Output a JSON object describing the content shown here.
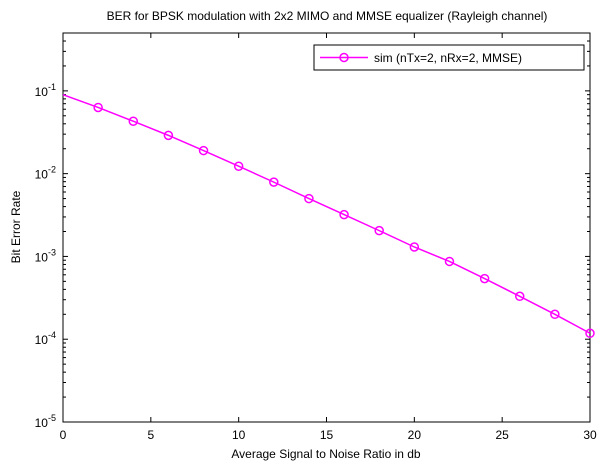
{
  "chart_data": {
    "type": "line",
    "title": "BER for BPSK modulation with 2x2 MIMO and MMSE equalizer (Rayleigh channel)",
    "xlabel": "Average Signal to Noise Ratio in db",
    "ylabel": "Bit Error Rate",
    "xlim": [
      0,
      30
    ],
    "ylim": [
      1e-05,
      0.5
    ],
    "yscale": "log",
    "grid": false,
    "legend_position": "top-right",
    "x_ticks": [
      0,
      5,
      10,
      15,
      20,
      25,
      30
    ],
    "x_tick_labels": [
      "0",
      "5",
      "10",
      "15",
      "20",
      "25",
      "30"
    ],
    "y_ticks": [
      1e-05,
      0.0001,
      0.001,
      0.01,
      0.1
    ],
    "y_tick_labels": [
      {
        "base": "10",
        "exp": "-5"
      },
      {
        "base": "10",
        "exp": "-4"
      },
      {
        "base": "10",
        "exp": "-3"
      },
      {
        "base": "10",
        "exp": "-2"
      },
      {
        "base": "10",
        "exp": "-1"
      }
    ],
    "series": [
      {
        "name": "sim (nTx=2, nRx=2, MMSE)",
        "color": "#ff00ff",
        "marker": "circle",
        "x": [
          0,
          2,
          4,
          6,
          8,
          10,
          12,
          14,
          16,
          18,
          20,
          22,
          24,
          26,
          28,
          30
        ],
        "y": [
          0.09,
          0.063,
          0.043,
          0.029,
          0.019,
          0.0123,
          0.0079,
          0.005,
          0.0032,
          0.00205,
          0.0013,
          0.00087,
          0.00054,
          0.00033,
          0.0002,
          0.000118
        ]
      }
    ]
  }
}
